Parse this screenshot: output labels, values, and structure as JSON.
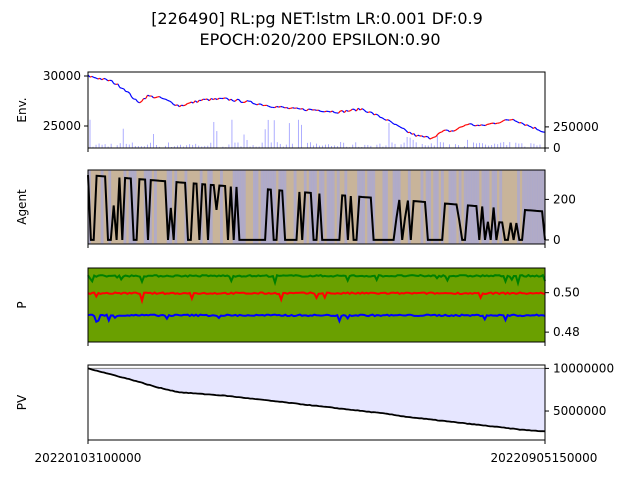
{
  "title_line1": "[226490] RL:pg NET:lstm LR:0.001 DF:0.9",
  "title_line2": "EPOCH:020/200 EPSILON:0.90",
  "x_start_label": "20220103100000",
  "x_end_label": "20220905150000",
  "chart_data": [
    {
      "type": "line",
      "ylabel": "Env.",
      "ylim": [
        22800,
        30400
      ],
      "yticks": [
        25000,
        30000
      ],
      "right_axis": {
        "ylim": [
          0,
          900000
        ],
        "yticks": [
          0,
          250000
        ],
        "series": "volume"
      },
      "price_series": {
        "x": [
          0,
          0.05,
          0.08,
          0.11,
          0.13,
          0.16,
          0.2,
          0.25,
          0.3,
          0.35,
          0.4,
          0.45,
          0.5,
          0.55,
          0.6,
          0.65,
          0.68,
          0.7,
          0.72,
          0.75,
          0.78,
          0.8,
          0.83,
          0.86,
          0.9,
          0.93,
          0.96,
          1.0
        ],
        "values": [
          30000,
          29500,
          28700,
          27300,
          28000,
          27800,
          27000,
          27600,
          27700,
          27400,
          27000,
          26700,
          26600,
          26400,
          26700,
          25700,
          24900,
          24400,
          24000,
          23800,
          24500,
          24500,
          25200,
          25000,
          25400,
          25700,
          25100,
          24400
        ]
      },
      "volume_series": {
        "note_colors": [
          "#0000ff"
        ]
      },
      "colors": {
        "price_up": "#ff0000",
        "price_down": "#0000ff",
        "volume": "#9999ff"
      }
    },
    {
      "type": "line",
      "ylabel": "Agent",
      "ylim": [
        -20,
        345
      ],
      "yticks": [
        0,
        200
      ],
      "action_trend": {
        "x": [
          0,
          1
        ],
        "values": [
          320,
          140
        ]
      },
      "colors": {
        "line": "#000000",
        "band_a": "#c8b49a",
        "band_b": "#a6a6d8"
      }
    },
    {
      "type": "line",
      "ylabel": "P",
      "ylim": [
        0.475,
        0.5125
      ],
      "yticks": [
        0.48,
        0.5
      ],
      "ytick_labels": [
        "0.48",
        "0.50"
      ],
      "series": [
        {
          "values_mean": 0.5085,
          "color": "#008000"
        },
        {
          "values_mean": 0.4997,
          "color": "#ff0000"
        },
        {
          "values_mean": 0.4885,
          "color": "#0000ff"
        }
      ],
      "colors": {
        "background": "#6aa000"
      }
    },
    {
      "type": "area",
      "ylabel": "PV",
      "ylim": [
        1600000,
        10400000
      ],
      "yticks": [
        5000000,
        10000000
      ],
      "ytick_labels": [
        "5000000",
        "10000000"
      ],
      "baseline": 10000000,
      "series": {
        "x": [
          0,
          0.05,
          0.1,
          0.15,
          0.2,
          0.25,
          0.3,
          0.35,
          0.4,
          0.45,
          0.5,
          0.55,
          0.6,
          0.65,
          0.7,
          0.75,
          0.8,
          0.85,
          0.9,
          0.95,
          1.0
        ],
        "values": [
          10000000,
          9300000,
          8600000,
          7800000,
          7200000,
          7000000,
          6800000,
          6500000,
          6200000,
          5900000,
          5600000,
          5300000,
          5000000,
          4700000,
          4300000,
          4000000,
          3700000,
          3400000,
          3100000,
          2800000,
          2600000
        ]
      },
      "colors": {
        "fill": "#e6e6ff",
        "line": "#000000",
        "baseline": "#888888"
      }
    }
  ]
}
